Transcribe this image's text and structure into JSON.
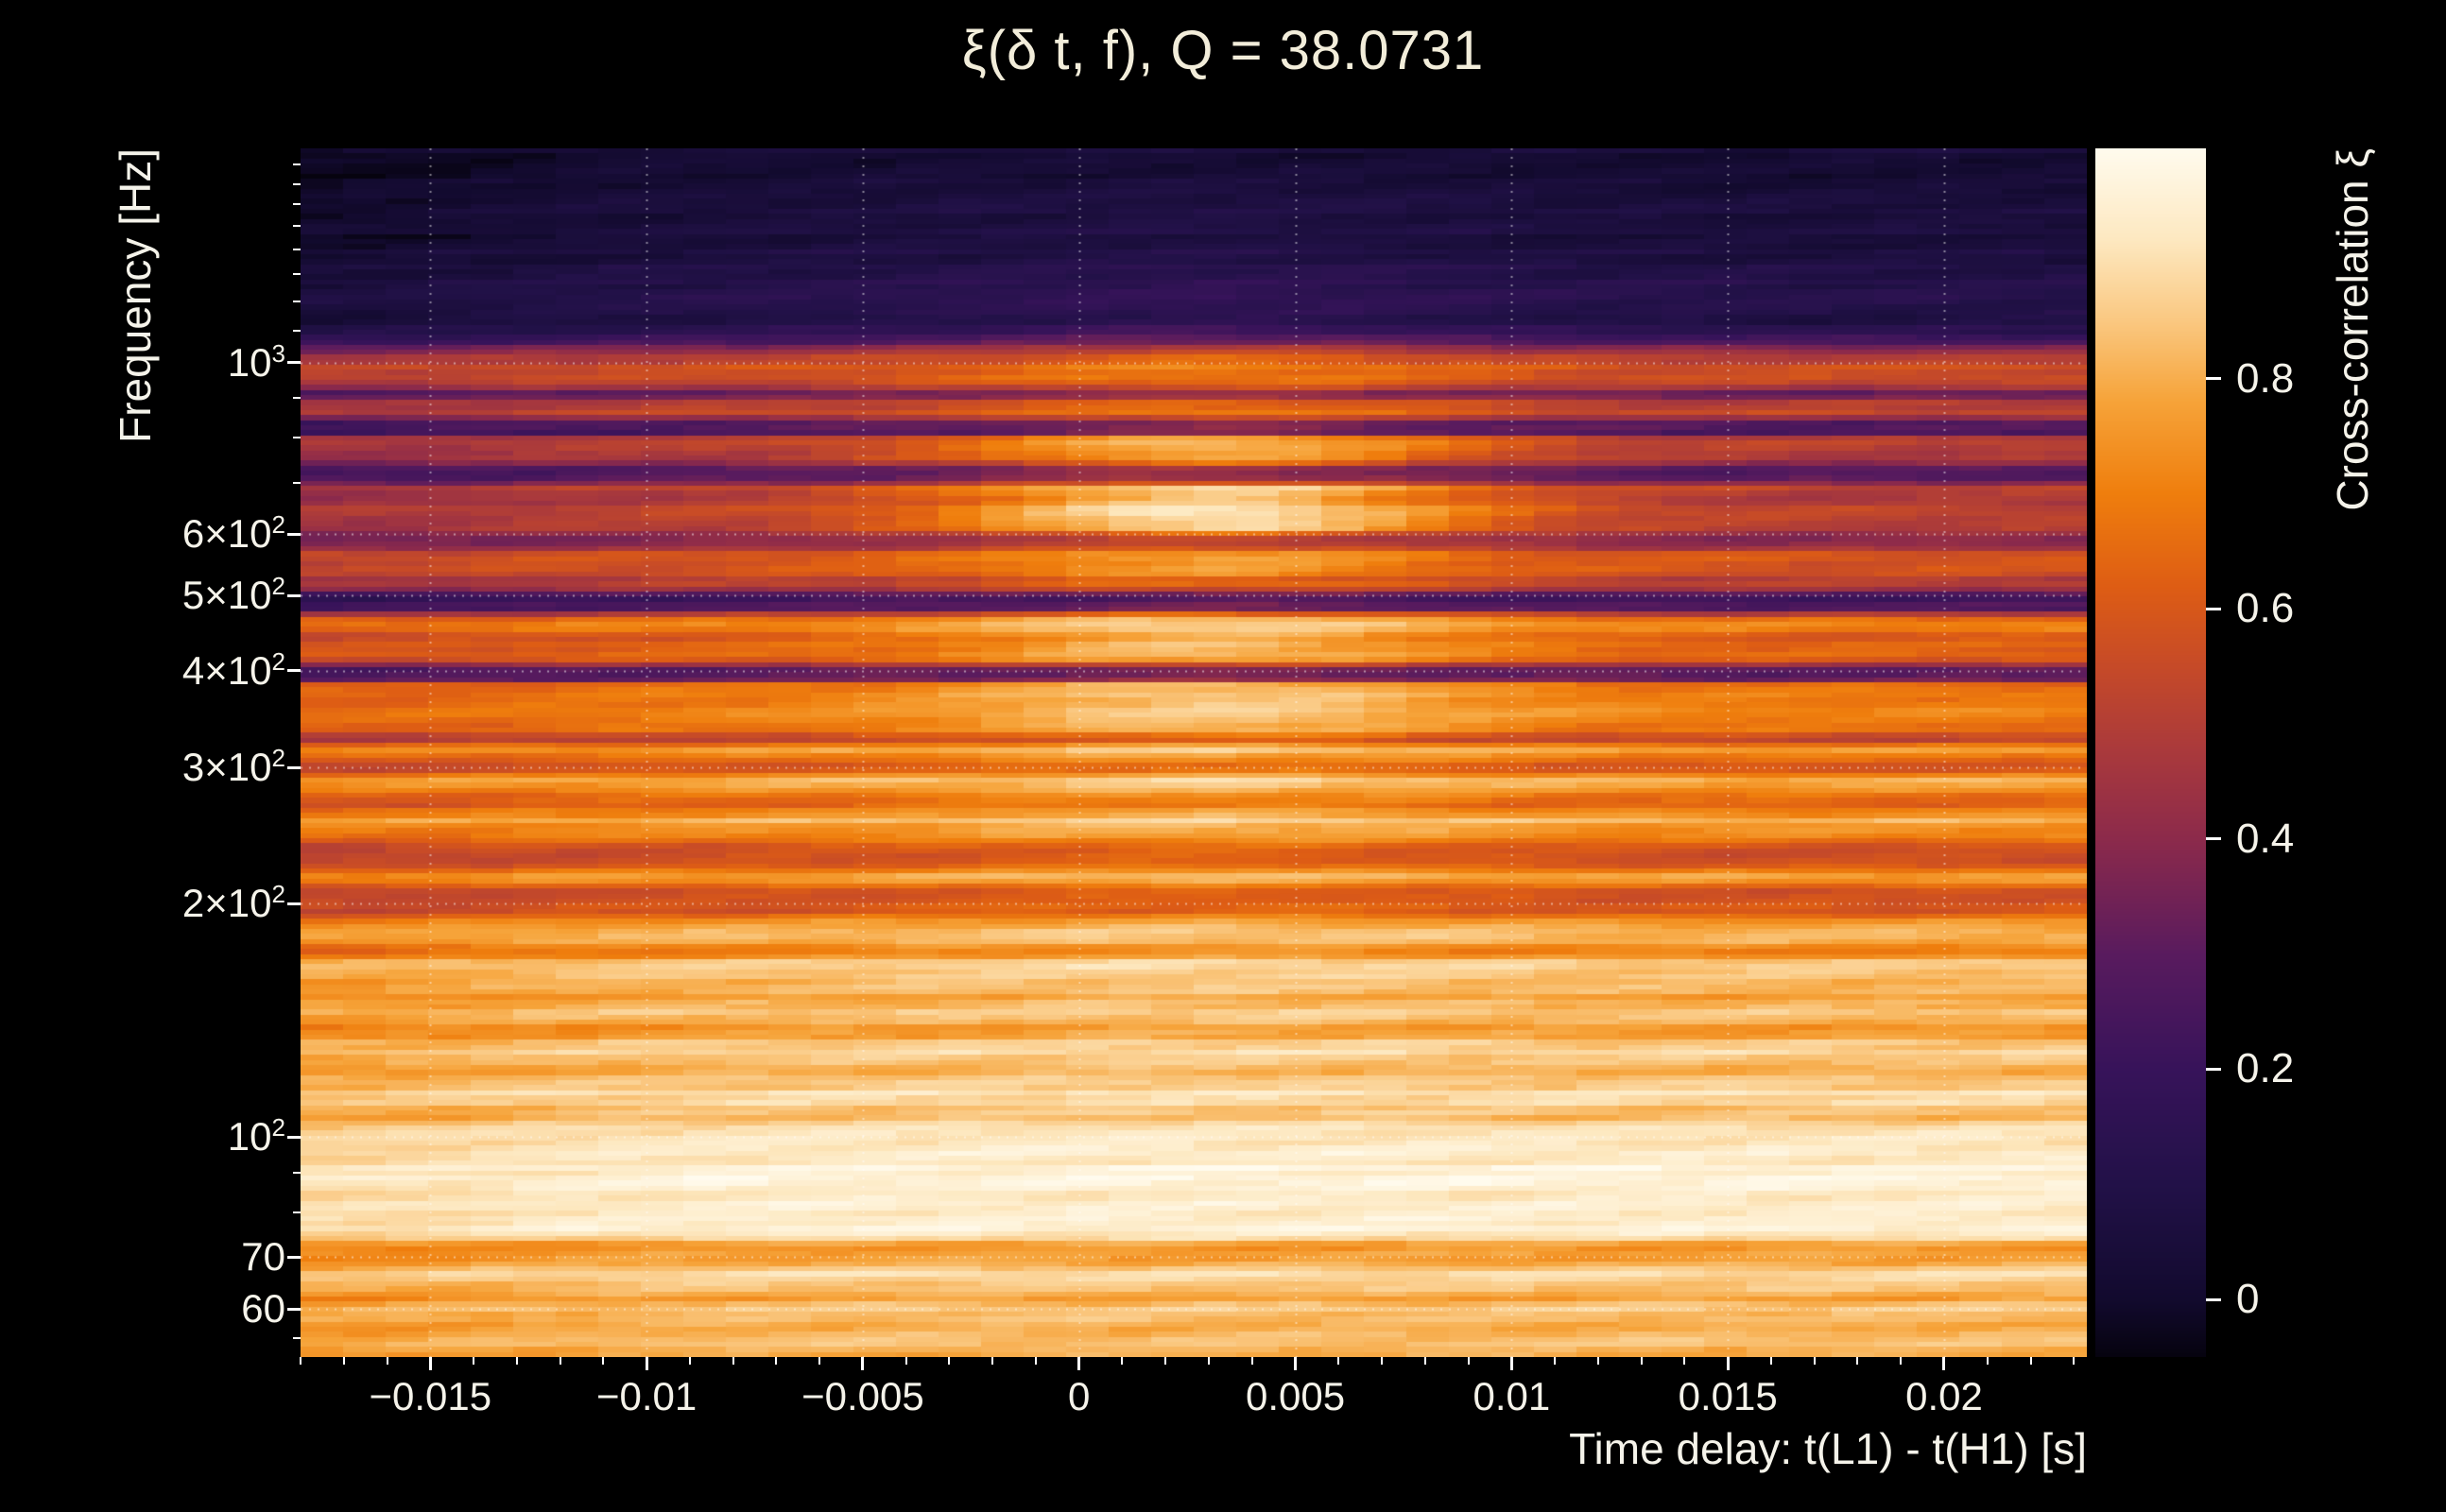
{
  "chart_data": {
    "type": "heatmap",
    "title": "ξ(δ t, f), Q = 38.0731",
    "xlabel": "Time delay: t(L1) - t(H1) [s]",
    "ylabel": "Frequency [Hz]",
    "zlabel": "Cross-correlation ξ",
    "x_range": [
      -0.018,
      0.0233
    ],
    "y_range_hz": [
      52,
      1890
    ],
    "y_scale": "log",
    "z_range": [
      -0.05,
      1.0
    ],
    "grid": "dotted-white",
    "legend_position": "right-colorbar",
    "x_ticks": [
      {
        "v": -0.015,
        "label": "−0.015"
      },
      {
        "v": -0.01,
        "label": "−0.01"
      },
      {
        "v": -0.005,
        "label": "−0.005"
      },
      {
        "v": 0,
        "label": "0"
      },
      {
        "v": 0.005,
        "label": "0.005"
      },
      {
        "v": 0.01,
        "label": "0.01"
      },
      {
        "v": 0.015,
        "label": "0.015"
      },
      {
        "v": 0.02,
        "label": "0.02"
      }
    ],
    "y_ticks": [
      {
        "f": 1000,
        "mant": "10",
        "exp": "3"
      },
      {
        "f": 600,
        "mant": "6×10",
        "exp": "2"
      },
      {
        "f": 500,
        "mant": "5×10",
        "exp": "2"
      },
      {
        "f": 400,
        "mant": "4×10",
        "exp": "2"
      },
      {
        "f": 300,
        "mant": "3×10",
        "exp": "2"
      },
      {
        "f": 200,
        "mant": "2×10",
        "exp": "2"
      },
      {
        "f": 100,
        "mant": "10",
        "exp": "2"
      },
      {
        "f": 70,
        "mant": "70",
        "exp": ""
      },
      {
        "f": 60,
        "mant": "60",
        "exp": ""
      }
    ],
    "colorbar_ticks": [
      {
        "v": 0,
        "label": "0"
      },
      {
        "v": 0.2,
        "label": "0.2"
      },
      {
        "v": 0.4,
        "label": "0.4"
      },
      {
        "v": 0.6,
        "label": "0.6"
      },
      {
        "v": 0.8,
        "label": "0.8"
      }
    ],
    "colormap": [
      [
        -0.05,
        "#06030f"
      ],
      [
        0.0,
        "#120a2e"
      ],
      [
        0.1,
        "#221148"
      ],
      [
        0.2,
        "#37135a"
      ],
      [
        0.3,
        "#591b5e"
      ],
      [
        0.4,
        "#8c2a4b"
      ],
      [
        0.48,
        "#ab3a3b"
      ],
      [
        0.55,
        "#c64a28"
      ],
      [
        0.62,
        "#de5d14"
      ],
      [
        0.7,
        "#ef7e0d"
      ],
      [
        0.78,
        "#f6a339"
      ],
      [
        0.85,
        "#fac881"
      ],
      [
        0.92,
        "#fde8c0"
      ],
      [
        1.0,
        "#fffbee"
      ]
    ],
    "center_bump": {
      "t0": 0.003,
      "sigma": 0.0045
    },
    "profile_comment": "rows of [frequency_Hz, baseline_xi_at_edges, extra_xi_at_center_bump]; xi values estimated from the rendered colormap",
    "profile": [
      [
        1890,
        0.03,
        0.0
      ],
      [
        1700,
        0.04,
        0.02
      ],
      [
        1500,
        0.05,
        0.03
      ],
      [
        1360,
        0.07,
        0.03
      ],
      [
        1300,
        0.09,
        0.04
      ],
      [
        1240,
        0.12,
        0.05
      ],
      [
        1180,
        0.1,
        0.06
      ],
      [
        1140,
        0.07,
        0.05
      ],
      [
        1110,
        0.13,
        0.08
      ],
      [
        1070,
        0.22,
        0.1
      ],
      [
        1040,
        0.38,
        0.12
      ],
      [
        1005,
        0.52,
        0.13
      ],
      [
        990,
        0.56,
        0.13
      ],
      [
        935,
        0.55,
        0.13
      ],
      [
        920,
        0.33,
        0.1
      ],
      [
        898,
        0.34,
        0.1
      ],
      [
        885,
        0.52,
        0.15
      ],
      [
        852,
        0.52,
        0.15
      ],
      [
        840,
        0.28,
        0.1
      ],
      [
        812,
        0.26,
        0.1
      ],
      [
        800,
        0.5,
        0.3
      ],
      [
        748,
        0.5,
        0.32
      ],
      [
        730,
        0.28,
        0.15
      ],
      [
        702,
        0.3,
        0.15
      ],
      [
        690,
        0.52,
        0.38
      ],
      [
        668,
        0.46,
        0.35
      ],
      [
        652,
        0.52,
        0.4
      ],
      [
        608,
        0.5,
        0.38
      ],
      [
        597,
        0.37,
        0.14
      ],
      [
        577,
        0.38,
        0.14
      ],
      [
        568,
        0.58,
        0.18
      ],
      [
        530,
        0.58,
        0.18
      ],
      [
        522,
        0.42,
        0.12
      ],
      [
        514,
        0.6,
        0.18
      ],
      [
        507,
        0.3,
        0.08
      ],
      [
        494,
        0.23,
        0.06
      ],
      [
        479,
        0.28,
        0.08
      ],
      [
        470,
        0.6,
        0.2
      ],
      [
        458,
        0.75,
        0.15
      ],
      [
        447,
        0.62,
        0.2
      ],
      [
        413,
        0.62,
        0.18
      ],
      [
        404,
        0.3,
        0.06
      ],
      [
        391,
        0.28,
        0.06
      ],
      [
        384,
        0.66,
        0.17
      ],
      [
        356,
        0.72,
        0.16
      ],
      [
        336,
        0.66,
        0.15
      ],
      [
        327,
        0.48,
        0.1
      ],
      [
        317,
        0.78,
        0.1
      ],
      [
        299,
        0.56,
        0.08
      ],
      [
        291,
        0.8,
        0.08
      ],
      [
        267,
        0.62,
        0.07
      ],
      [
        258,
        0.8,
        0.07
      ],
      [
        246,
        0.74,
        0.07
      ],
      [
        237,
        0.56,
        0.06
      ],
      [
        225,
        0.56,
        0.06
      ],
      [
        216,
        0.78,
        0.05
      ],
      [
        207,
        0.56,
        0.05
      ],
      [
        196,
        0.58,
        0.05
      ],
      [
        189,
        0.75,
        0.04
      ],
      [
        182,
        0.82,
        0.04
      ],
      [
        173,
        0.7,
        0.04
      ],
      [
        167,
        0.86,
        0.03
      ],
      [
        152,
        0.78,
        0.03
      ],
      [
        144,
        0.86,
        0.02
      ],
      [
        137,
        0.74,
        0.03
      ],
      [
        130,
        0.88,
        0.02
      ],
      [
        121,
        0.8,
        0.02
      ],
      [
        114,
        0.9,
        0.01
      ],
      [
        106,
        0.82,
        0.02
      ],
      [
        101,
        0.92,
        0.01
      ],
      [
        95,
        0.93,
        0.01
      ],
      [
        90,
        0.96,
        0.0
      ],
      [
        82,
        0.94,
        0.0
      ],
      [
        75,
        0.95,
        0.0
      ],
      [
        72,
        0.74,
        0.0
      ],
      [
        69,
        0.8,
        0.0
      ],
      [
        66,
        0.92,
        0.0
      ],
      [
        62,
        0.76,
        0.0
      ],
      [
        60,
        0.84,
        0.0
      ],
      [
        57,
        0.8,
        0.0
      ],
      [
        55,
        0.84,
        0.0
      ],
      [
        52,
        0.8,
        0.0
      ]
    ]
  }
}
